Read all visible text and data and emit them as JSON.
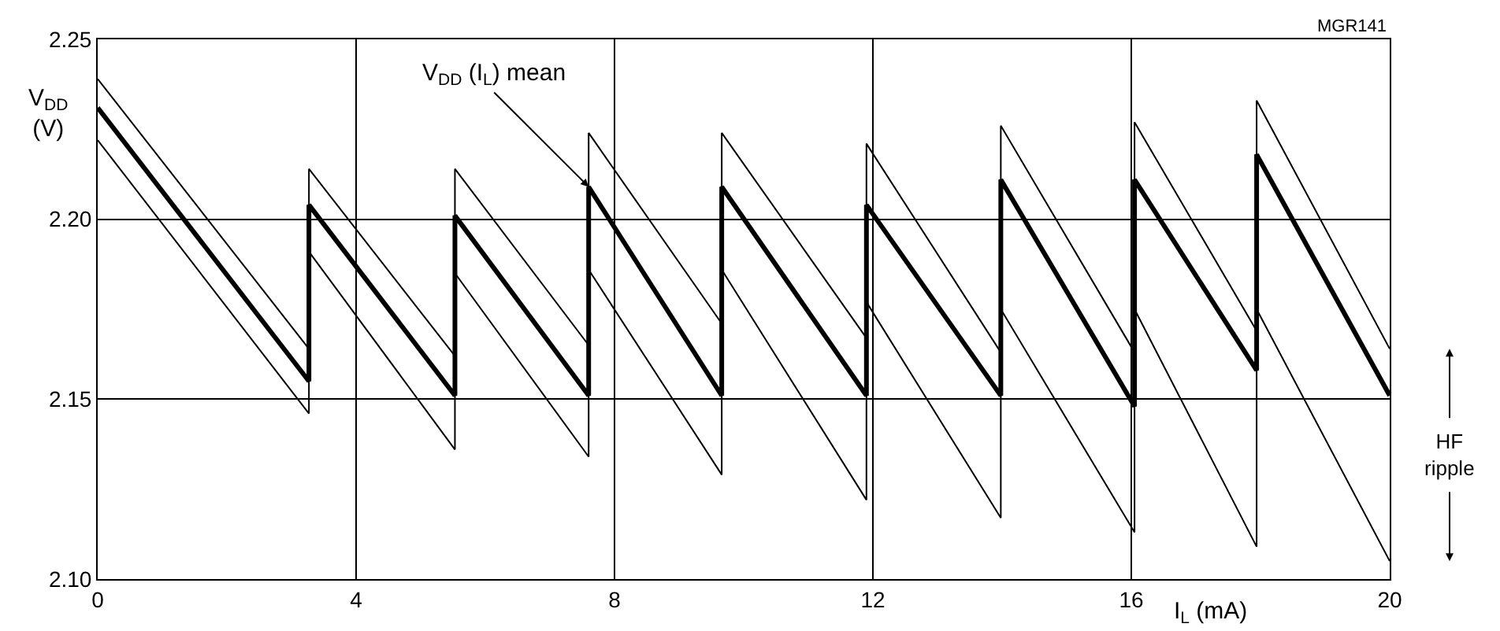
{
  "chart_data": {
    "type": "line",
    "x": [
      0,
      3.27,
      3.27,
      5.53,
      5.53,
      7.6,
      7.6,
      9.66,
      9.66,
      11.9,
      11.9,
      13.98,
      13.98,
      16.05,
      16.05,
      17.94,
      17.94,
      20
    ],
    "series": [
      {
        "color": "#000000",
        "values": [
          2.239,
          2.164,
          2.214,
          2.162,
          2.214,
          2.165,
          2.224,
          2.171,
          2.224,
          2.167,
          2.221,
          2.163,
          2.226,
          2.163,
          2.227,
          2.169,
          2.233,
          2.164
        ]
      },
      {
        "color": "#000000",
        "values": [
          2.231,
          2.155,
          2.204,
          2.151,
          2.201,
          2.151,
          2.209,
          2.151,
          2.209,
          2.151,
          2.204,
          2.151,
          2.211,
          2.148,
          2.211,
          2.158,
          2.218,
          2.151
        ]
      },
      {
        "color": "#000000",
        "values": [
          2.222,
          2.146,
          2.191,
          2.136,
          2.185,
          2.134,
          2.186,
          2.129,
          2.186,
          2.122,
          2.177,
          2.117,
          2.175,
          2.113,
          2.175,
          2.109,
          2.175,
          2.105
        ]
      }
    ],
    "xlabel": "I$_{L}$ (mA)",
    "ylabel": "V$_{DD}$\n(V)",
    "xlim": [
      0,
      20
    ],
    "xticks": [
      0,
      4,
      8,
      12,
      16,
      20
    ],
    "ylim": [
      2.1,
      2.25
    ],
    "yticks": [
      {
        "value": 2.1,
        "label": "2.10"
      },
      2.15,
      {
        "value": 2.2,
        "label": "2.20"
      },
      2.25
    ],
    "annotations": [
      {
        "text": "V$_{DD}$ (I$_{L}$) mean",
        "x": 7.6,
        "y": 2.209
      },
      "HF\nripple",
      "MGR141"
    ],
    "grid": true,
    "marker": "none",
    "line_style": "solid"
  }
}
